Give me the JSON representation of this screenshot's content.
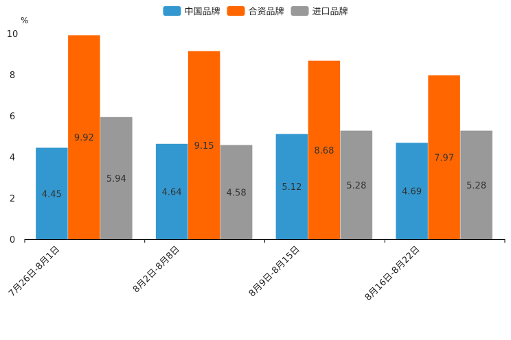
{
  "chart_data": {
    "type": "bar",
    "title": "",
    "xlabel": "",
    "ylabel": "%",
    "ylim": [
      0,
      10
    ],
    "yticks": [
      "0",
      "2",
      "4",
      "6",
      "8",
      "10"
    ],
    "categories": [
      "7月26日-8月1日",
      "8月2日-8月8日",
      "8月9日-8月15日",
      "8月16日-8月22日"
    ],
    "series": [
      {
        "name": "中国品牌",
        "color": "#3498d0",
        "values": [
          4.45,
          4.64,
          5.12,
          4.69
        ],
        "labels": [
          "4.45",
          "4.64",
          "5.12",
          "4.69"
        ]
      },
      {
        "name": "合资品牌",
        "color": "#ff6600",
        "values": [
          9.92,
          9.15,
          8.68,
          7.97
        ],
        "labels": [
          "9.92",
          "9.15",
          "8.68",
          "7.97"
        ]
      },
      {
        "name": "进口品牌",
        "color": "#999999",
        "values": [
          5.94,
          4.58,
          5.28,
          5.28
        ],
        "labels": [
          "5.94",
          "4.58",
          "5.28",
          "5.28"
        ]
      }
    ],
    "legend": "top-center",
    "grid": false
  }
}
